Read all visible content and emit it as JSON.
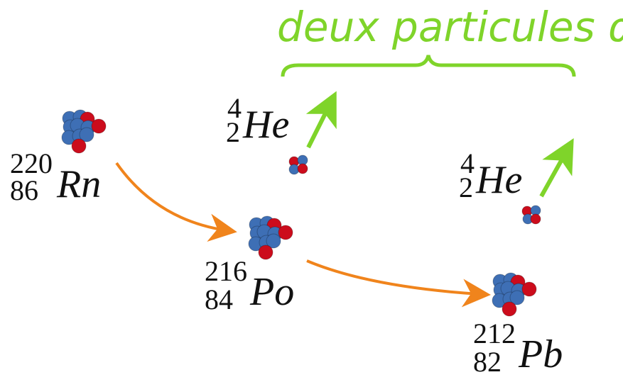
{
  "title": "deux particules α",
  "nuclei": [
    {
      "mass": 220,
      "atomic": 86,
      "symbol": "Rn"
    },
    {
      "mass": 216,
      "atomic": 84,
      "symbol": "Po"
    },
    {
      "mass": 212,
      "atomic": 82,
      "symbol": "Pb"
    }
  ],
  "alphas": [
    {
      "mass": 4,
      "atomic": 2,
      "symbol": "He"
    },
    {
      "mass": 4,
      "atomic": 2,
      "symbol": "He"
    }
  ]
}
